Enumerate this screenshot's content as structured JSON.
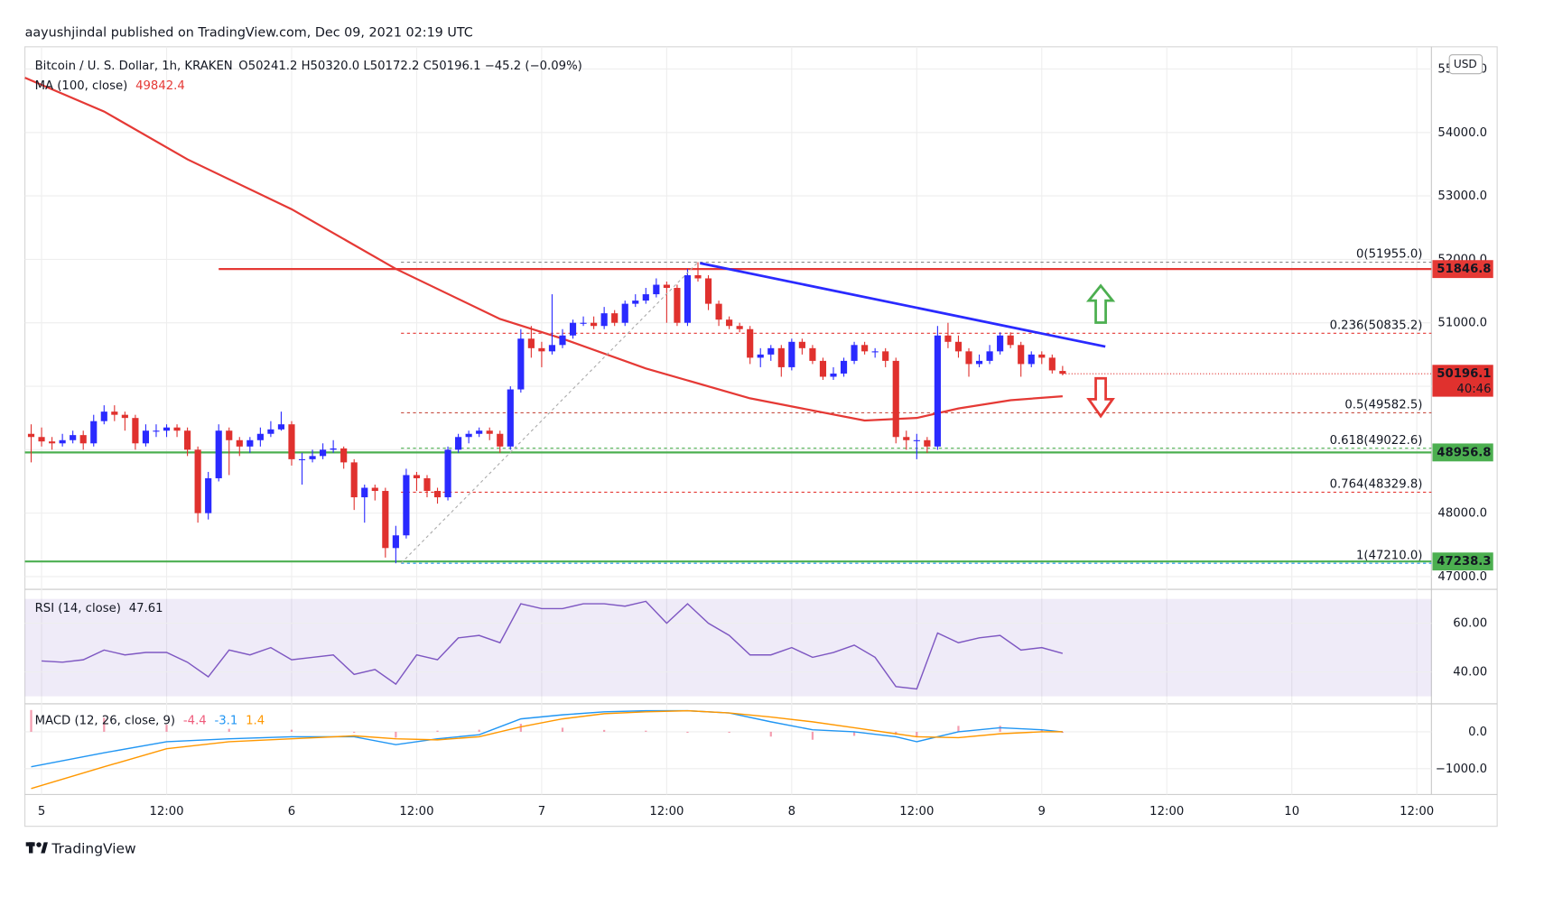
{
  "header": {
    "publisher": "aayushjindal published on TradingView.com, Dec 09, 2021 02:19 UTC",
    "brand": "TradingView"
  },
  "chart_data": [
    {
      "type": "candlestick",
      "title": "Bitcoin / U. S. Dollar, 1h, KRAKEN",
      "ohlc_text": "O50241.2  H50320.0  L50172.2  C50196.1  −45.2 (−0.09%)",
      "currency": "USD",
      "countdown": "40:46",
      "up_color": "#2a2aff",
      "down_color": "#e0312e",
      "x": [
        -1,
        0,
        1,
        2,
        3,
        4,
        5,
        6,
        7,
        8,
        9,
        10,
        11,
        12,
        13,
        14,
        15,
        16,
        17,
        18,
        19,
        20,
        21,
        22,
        23,
        24,
        25,
        26,
        27,
        28,
        29,
        30,
        31,
        32,
        33,
        34,
        35,
        36,
        37,
        38,
        39,
        40,
        41,
        42,
        43,
        44,
        45,
        46,
        47,
        48,
        49,
        50,
        51,
        52,
        53,
        54,
        55,
        56,
        57,
        58,
        59,
        60,
        61,
        62,
        63,
        64,
        65,
        66,
        67,
        68,
        69,
        70,
        71,
        72,
        73,
        74,
        75,
        76,
        77,
        78,
        79,
        80,
        81,
        82,
        83,
        84,
        85,
        86,
        87,
        88,
        89,
        90,
        91,
        92,
        93,
        94,
        95,
        96,
        97,
        98
      ],
      "open": [
        49250,
        49200,
        49130,
        49100,
        49150,
        49230,
        49100,
        49450,
        49600,
        49550,
        49500,
        49100,
        49300,
        49300,
        49350,
        49300,
        49000,
        48000,
        48550,
        49300,
        49150,
        49050,
        49150,
        49250,
        49320,
        49400,
        48850,
        48850,
        48900,
        49000,
        49020,
        48800,
        48250,
        48400,
        48350,
        47450,
        47650,
        48600,
        48550,
        48350,
        48250,
        49000,
        49200,
        49250,
        49300,
        49250,
        49050,
        49950,
        50750,
        50600,
        50550,
        50650,
        50800,
        51000,
        51000,
        50950,
        51150,
        51000,
        51300,
        51350,
        51450,
        51600,
        51550,
        51000,
        51750,
        51700,
        51300,
        51050,
        50950,
        50900,
        50450,
        50500,
        50600,
        50300,
        50700,
        50600,
        50400,
        50150,
        50200,
        50400,
        50650,
        50550,
        50550,
        50400,
        49200,
        49150,
        49150,
        49050,
        50800,
        50700,
        50550,
        50350,
        50400,
        50550,
        50800,
        50650,
        50350,
        50500,
        50450,
        50241.2
      ],
      "high": [
        49400,
        49350,
        49200,
        49250,
        49300,
        49300,
        49550,
        49700,
        49700,
        49600,
        49550,
        49400,
        49400,
        49400,
        49400,
        49350,
        49050,
        48650,
        49400,
        49350,
        49200,
        49200,
        49350,
        49450,
        49600,
        49450,
        48950,
        49000,
        49100,
        49150,
        49050,
        48850,
        48450,
        48450,
        48400,
        47800,
        48700,
        48650,
        48600,
        48400,
        49050,
        49250,
        49300,
        49350,
        49350,
        49300,
        50000,
        50900,
        50950,
        50700,
        51450,
        50900,
        51050,
        51100,
        51100,
        51250,
        51200,
        51350,
        51450,
        51550,
        51700,
        51650,
        51600,
        51850,
        51955,
        51750,
        51350,
        51100,
        51000,
        50950,
        50600,
        50650,
        50650,
        50750,
        50750,
        50650,
        50450,
        50300,
        50450,
        50700,
        50700,
        50600,
        50600,
        50450,
        49300,
        49250,
        49200,
        50950,
        51000,
        50800,
        50600,
        50500,
        50650,
        50850,
        50850,
        50700,
        50550,
        50550,
        50500,
        50320
      ],
      "low": [
        48800,
        49050,
        49000,
        49050,
        49100,
        49000,
        49050,
        49400,
        49450,
        49300,
        49000,
        49050,
        49200,
        49200,
        49200,
        48900,
        47850,
        47900,
        48500,
        48600,
        48900,
        48950,
        49050,
        49200,
        49300,
        48750,
        48450,
        48800,
        48850,
        48950,
        48700,
        48050,
        47850,
        48200,
        47300,
        47210,
        47600,
        48350,
        48250,
        48150,
        48200,
        48950,
        49100,
        49200,
        49150,
        48950,
        49000,
        49900,
        50450,
        50300,
        50500,
        50600,
        50750,
        50950,
        50900,
        50900,
        50950,
        50950,
        51250,
        51300,
        51400,
        51000,
        50950,
        50950,
        51650,
        51200,
        50950,
        50900,
        50850,
        50350,
        50300,
        50400,
        50150,
        50250,
        50500,
        50350,
        50100,
        50100,
        50150,
        50350,
        50500,
        50450,
        50300,
        49100,
        49000,
        48850,
        48950,
        49000,
        50600,
        50450,
        50150,
        50300,
        50350,
        50500,
        50600,
        50150,
        50300,
        50350,
        50200,
        50172.2
      ],
      "close": [
        49200,
        49130,
        49100,
        49150,
        49230,
        49100,
        49450,
        49600,
        49550,
        49500,
        49100,
        49300,
        49300,
        49350,
        49300,
        49000,
        48000,
        48550,
        49300,
        49150,
        49050,
        49150,
        49250,
        49320,
        49400,
        48850,
        48850,
        48900,
        49000,
        49020,
        48800,
        48250,
        48400,
        48350,
        47450,
        47650,
        48600,
        48550,
        48350,
        48250,
        49000,
        49200,
        49250,
        49300,
        49250,
        49050,
        49950,
        50750,
        50600,
        50550,
        50650,
        50800,
        51000,
        51000,
        50950,
        51150,
        51000,
        51300,
        51350,
        51450,
        51600,
        51550,
        51000,
        51750,
        51700,
        51300,
        51050,
        50950,
        50900,
        50450,
        50500,
        50600,
        50300,
        50700,
        50600,
        50400,
        50150,
        50200,
        50400,
        50650,
        50550,
        50550,
        50400,
        49200,
        49150,
        49150,
        49050,
        50800,
        50700,
        50550,
        50350,
        50400,
        50550,
        50800,
        50650,
        50350,
        50500,
        50450,
        50250,
        50196.1
      ],
      "overlays": [
        {
          "name": "MA (100, close)",
          "color": "#e53935",
          "x": [
            -1.6,
            6,
            14,
            24,
            34,
            44,
            50,
            58,
            68,
            73,
            79,
            84,
            88,
            93,
            98
          ],
          "values": [
            54863,
            54330,
            53576,
            52790,
            51850,
            51060,
            50750,
            50280,
            49810,
            49650,
            49460,
            49500,
            49650,
            49780,
            49842.4
          ]
        }
      ],
      "levels": [
        {
          "value": 51846.8,
          "color": "#e53935",
          "x_from": 17
        },
        {
          "value": 48956.8,
          "color": "#4caf50",
          "x_from": -1.6
        },
        {
          "value": 47238.3,
          "color": "#4caf50",
          "x_from": -1.6
        }
      ],
      "fib": [
        {
          "label": "0(51955.0)",
          "value": 51955,
          "color": "#888888"
        },
        {
          "label": "0.236(50835.2)",
          "value": 50835.2,
          "color": "#e53935"
        },
        {
          "label": "0.5(49582.5)",
          "value": 49582.5,
          "color": "#c0392b"
        },
        {
          "label": "0.618(49022.6)",
          "value": 49022.6,
          "color": "#4caf50"
        },
        {
          "label": "0.764(48329.8)",
          "value": 48329.8,
          "color": "#e53935"
        },
        {
          "label": "1(47210.0)",
          "value": 47210,
          "color": "#2196f3"
        }
      ],
      "trendlines": [
        {
          "x": [
            34.5,
            63
          ],
          "values": [
            47210,
            51955
          ],
          "color": "#aaaaaa",
          "dashed": true
        },
        {
          "x": [
            63.2,
            102.1
          ],
          "values": [
            51940,
            50625
          ],
          "color": "#2a2aff",
          "dashed": false
        }
      ],
      "xlim": [
        -1.6,
        133.4
      ],
      "ylim": [
        46830,
        55350
      ],
      "yticks": [
        {
          "value": 47000,
          "label": "47000.0"
        },
        {
          "value": 48000,
          "label": "48000.0"
        },
        {
          "value": 49000,
          "label": "49000.0"
        },
        {
          "value": 50000,
          "label": "50000.0"
        },
        {
          "value": 51000,
          "label": "51000.0"
        },
        {
          "value": 52000,
          "label": "52000.0"
        },
        {
          "value": 53000,
          "label": "53000.0"
        },
        {
          "value": 54000,
          "label": "54000.0"
        },
        {
          "value": 55000,
          "label": "55000.0"
        }
      ],
      "xticks": [
        {
          "value": 0,
          "label": "5"
        },
        {
          "value": 12,
          "label": "12:00"
        },
        {
          "value": 24,
          "label": "6"
        },
        {
          "value": 36,
          "label": "12:00"
        },
        {
          "value": 48,
          "label": "7"
        },
        {
          "value": 60,
          "label": "12:00"
        },
        {
          "value": 72,
          "label": "8"
        },
        {
          "value": 84,
          "label": "12:00"
        },
        {
          "value": 96,
          "label": "9"
        },
        {
          "value": 108,
          "label": "12:00"
        },
        {
          "value": 120,
          "label": "10"
        },
        {
          "value": 132,
          "label": "12:00"
        }
      ],
      "grid": true
    },
    {
      "type": "line",
      "title": "RSI (14, close)",
      "color": "#7e57c2",
      "band": [
        30,
        70
      ],
      "x": [
        0,
        2,
        4,
        6,
        8,
        10,
        12,
        14,
        16,
        18,
        20,
        22,
        24,
        26,
        28,
        30,
        32,
        34,
        36,
        38,
        40,
        42,
        44,
        46,
        48,
        50,
        52,
        54,
        56,
        58,
        60,
        62,
        64,
        66,
        68,
        70,
        72,
        74,
        76,
        78,
        80,
        82,
        84,
        86,
        88,
        90,
        92,
        94,
        96,
        98
      ],
      "values": [
        44.5,
        44,
        45,
        49,
        47,
        48,
        48,
        44,
        38,
        49,
        47,
        50,
        45,
        46,
        47,
        39,
        41,
        35,
        47,
        45,
        54,
        55,
        52,
        68,
        66,
        66,
        68,
        68,
        67,
        69,
        60,
        68,
        60,
        55,
        47,
        47,
        50,
        46,
        48,
        51,
        46,
        34,
        33,
        56,
        52,
        54,
        55,
        49,
        50,
        47.61
      ],
      "ylim": [
        26.9,
        73.5
      ],
      "yticks": [
        {
          "value": 40,
          "label": "40.00"
        },
        {
          "value": 60,
          "label": "60.00"
        }
      ]
    },
    {
      "type": "line",
      "title": "MACD (12, 26, close, 9)",
      "x": [
        -1,
        6,
        12,
        18,
        24,
        30,
        34,
        38,
        42,
        46,
        50,
        54,
        58,
        62,
        66,
        70,
        74,
        78,
        82,
        84,
        88,
        92,
        96,
        98
      ],
      "series": [
        {
          "style": "histogram",
          "color": "#ef5b7b",
          "values": [
            590,
            380,
            190,
            80,
            55,
            -25,
            -160,
            30,
            55,
            215,
            110,
            50,
            30,
            0,
            0,
            -130,
            -216,
            -110,
            -81,
            -135,
            160,
            164,
            54,
            -4.4
          ]
        },
        {
          "style": "line",
          "color": "#2196f3",
          "values": [
            -950,
            -570,
            -270,
            -190,
            -135,
            -135,
            -350,
            -190,
            -80,
            350,
            460,
            540,
            570,
            570,
            510,
            270,
            54,
            0,
            -135,
            -270,
            0,
            110,
            54,
            -3.1
          ]
        },
        {
          "style": "line",
          "color": "#ff9800",
          "values": [
            -1540,
            -950,
            -460,
            -270,
            -190,
            -110,
            -190,
            -220,
            -135,
            135,
            350,
            490,
            540,
            570,
            510,
            400,
            270,
            110,
            -54,
            -135,
            -160,
            -54,
            0,
            1.4
          ]
        }
      ],
      "ylim": [
        -1700,
        730
      ],
      "yticks": [
        {
          "value": 0,
          "label": "0.0"
        },
        {
          "value": -1000,
          "label": "−1000.0"
        }
      ]
    }
  ]
}
